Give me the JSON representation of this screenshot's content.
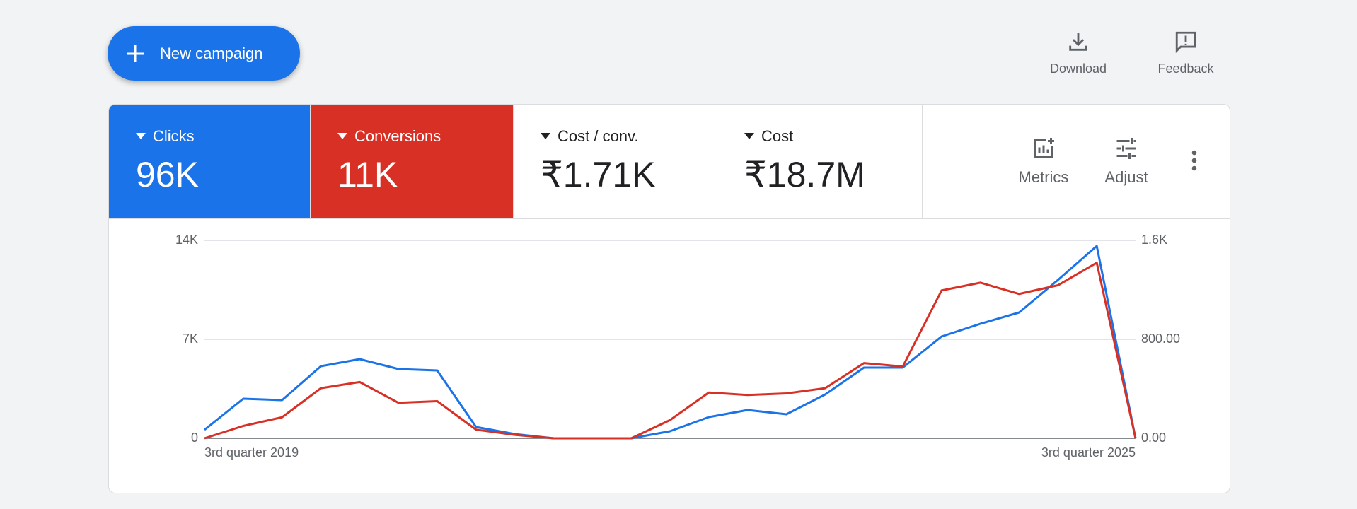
{
  "toolbar": {
    "new_campaign": "New campaign",
    "download": "Download",
    "feedback": "Feedback"
  },
  "metrics": [
    {
      "label": "Clicks",
      "value": "96K"
    },
    {
      "label": "Conversions",
      "value": "11K"
    },
    {
      "label": "Cost / conv.",
      "value": "₹1.71K"
    },
    {
      "label": "Cost",
      "value": "₹18.7M"
    }
  ],
  "metric_actions": {
    "metrics": "Metrics",
    "adjust": "Adjust"
  },
  "chart_data": {
    "type": "line",
    "categories": [
      "3rd quarter 2019",
      null,
      null,
      null,
      null,
      null,
      null,
      null,
      null,
      null,
      null,
      null,
      null,
      null,
      null,
      null,
      null,
      null,
      null,
      null,
      null,
      null,
      null,
      null,
      "3rd quarter 2025"
    ],
    "series": [
      {
        "color": "#1a73e8",
        "values": [
          600,
          2800,
          2700,
          5100,
          5600,
          4900,
          4800,
          800,
          300,
          0,
          0,
          0,
          500,
          1500,
          2000,
          1700,
          3100,
          5000,
          5000,
          7200,
          8100,
          8900,
          11200,
          13600,
          0
        ]
      },
      {
        "color": "#d93025",
        "axis": "y2",
        "values": [
          0,
          100,
          170,
          405,
          455,
          287,
          300,
          70,
          28,
          0,
          0,
          0,
          147,
          370,
          350,
          363,
          405,
          608,
          580,
          1195,
          1258,
          1167,
          1237,
          1419,
          0
        ]
      }
    ],
    "ylim": [
      0,
      14000
    ],
    "yticks": [
      0,
      {
        "value": 7000,
        "label": "7K"
      },
      {
        "value": 14000,
        "label": "14K"
      }
    ],
    "y2lim": [
      0,
      1600
    ],
    "y2ticks": [
      {
        "value": 0,
        "label": "0.00"
      },
      {
        "value": 800,
        "label": "800.00"
      },
      {
        "value": 1600,
        "label": "1.6K"
      }
    ],
    "grid": true
  }
}
